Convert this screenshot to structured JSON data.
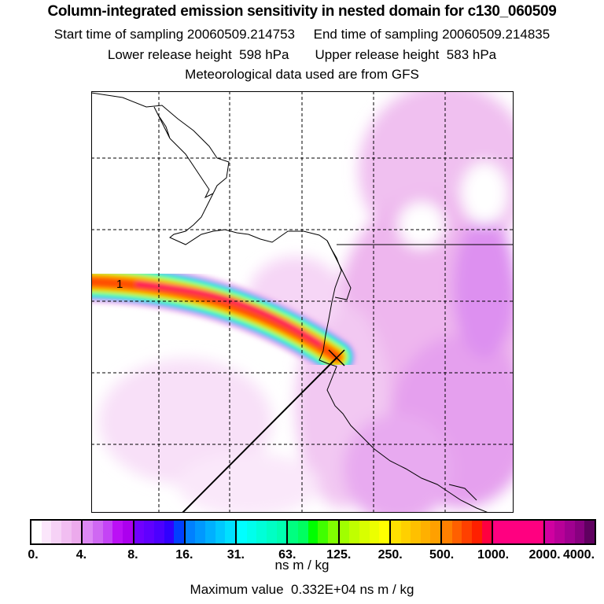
{
  "header": {
    "title": "Column-integrated emission sensitivity in nested domain for c130_060509",
    "start_label": "Start time of sampling 20060509.214753",
    "end_label": "End time of sampling 20060509.214835",
    "lower_label": "Lower release height  598 hPa",
    "upper_label": "Upper release height  583 hPa",
    "met_label": "Meteorological data used are from GFS"
  },
  "map": {
    "release_marker_label": "1"
  },
  "colorbar": {
    "tick_labels": [
      "0.",
      "4.",
      "8.",
      "16.",
      "31.",
      "63.",
      "125.",
      "250.",
      "500.",
      "1000.",
      "2000.",
      "4000."
    ],
    "unit": "ns m / kg",
    "groups": [
      [
        "#ffffff",
        "#fbe6fb",
        "#f6d2f6",
        "#f1beF1",
        "#ecaaec"
      ],
      [
        "#dd88f4",
        "#cf68f2",
        "#c444f5",
        "#bb10f5",
        "#ac00ee"
      ],
      [
        "#7000ff",
        "#6000ff",
        "#4c00ff",
        "#3000ff",
        "#0040ff"
      ],
      [
        "#0080ff",
        "#0098ff",
        "#00b0ff",
        "#00c8ff",
        "#00e0ff"
      ],
      [
        "#00ffff",
        "#00ffec",
        "#00ffd8",
        "#00ffc4",
        "#00ffb0"
      ],
      [
        "#00ff80",
        "#00ff60",
        "#00ff00",
        "#40ff00",
        "#80ff00"
      ],
      [
        "#a0ff00",
        "#c0ff00",
        "#d8ff00",
        "#ecff00",
        "#ffff00"
      ],
      [
        "#ffe000",
        "#ffd000",
        "#ffc000",
        "#ffb000",
        "#ffa000"
      ],
      [
        "#ff8000",
        "#ff6000",
        "#ff4000",
        "#ff2000",
        "#ff0040"
      ],
      [
        "#ff0080",
        "#ff0080",
        "#ff0080",
        "#ff0080",
        "#ff0080"
      ],
      [
        "#d000a0",
        "#b80098",
        "#a00090",
        "#880080",
        "#600060"
      ]
    ]
  },
  "footer": {
    "max_value": "Maximum value  0.332E+04 ns m / kg"
  }
}
